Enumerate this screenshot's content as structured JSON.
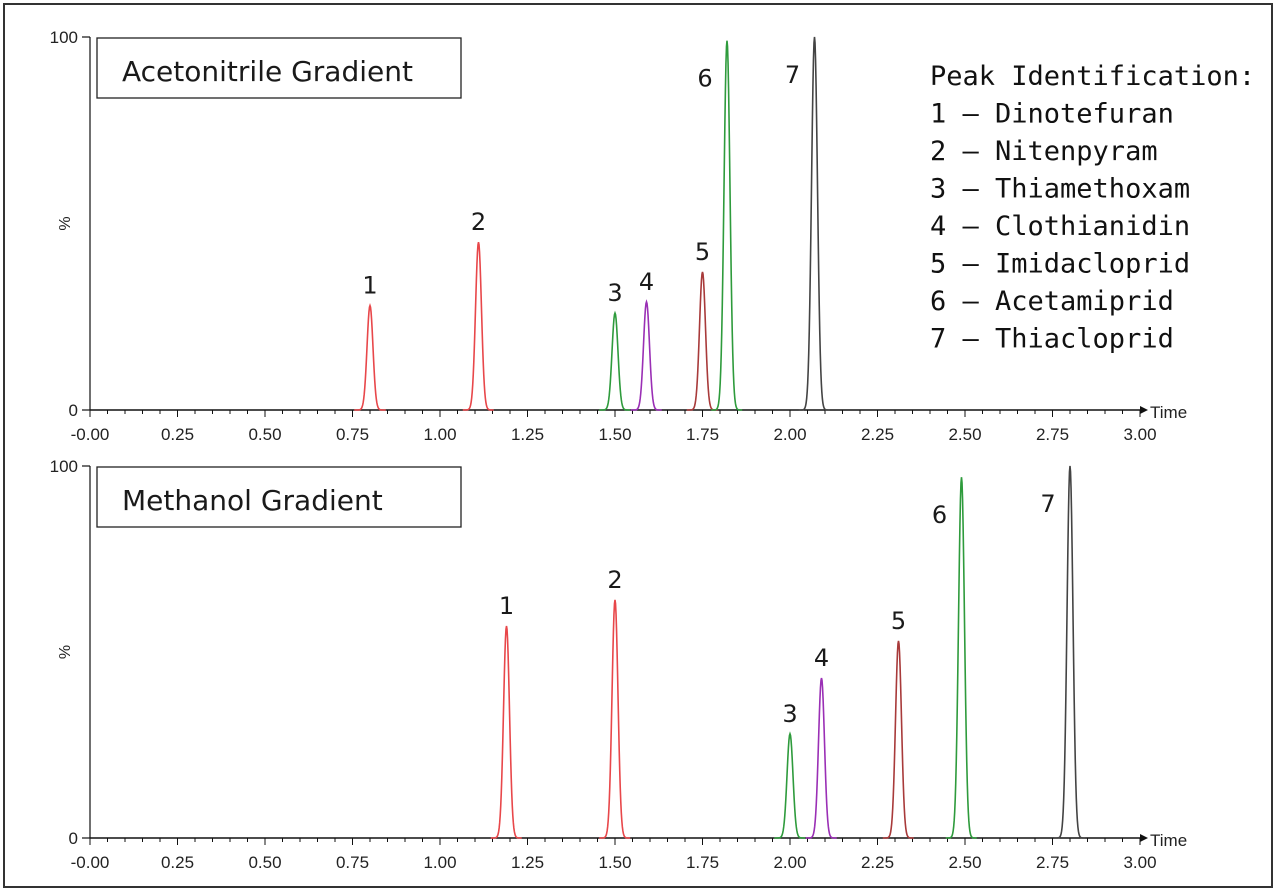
{
  "chart_data": [
    {
      "type": "line",
      "title": "Acetonitrile Gradient",
      "xlabel": "Time",
      "ylabel": "%",
      "xlim": [
        0,
        3
      ],
      "ylim": [
        0,
        100
      ],
      "x_ticks": [
        "-0.00",
        "0.25",
        "0.50",
        "0.75",
        "1.00",
        "1.25",
        "1.50",
        "1.75",
        "2.00",
        "2.25",
        "2.50",
        "2.75",
        "3.00"
      ],
      "y_ticks": [
        "0",
        "100"
      ],
      "peaks": [
        {
          "label": "1",
          "rt": 0.8,
          "height": 28,
          "color": "#e8474a"
        },
        {
          "label": "2",
          "rt": 1.11,
          "height": 45,
          "color": "#e8474a"
        },
        {
          "label": "3",
          "rt": 1.5,
          "height": 26,
          "color": "#2e9b3c"
        },
        {
          "label": "4",
          "rt": 1.59,
          "height": 29,
          "color": "#9a2fb5"
        },
        {
          "label": "5",
          "rt": 1.75,
          "height": 37,
          "color": "#a83a3a"
        },
        {
          "label": "6",
          "rt": 1.82,
          "height": 99,
          "color": "#2e9b3c"
        },
        {
          "label": "7",
          "rt": 2.07,
          "height": 100,
          "color": "#444444"
        }
      ],
      "legend": {
        "title": "Peak Identification:",
        "entries": [
          "1 – Dinotefuran",
          "2 – Nitenpyram",
          "3 – Thiamethoxam",
          "4 – Clothianidin",
          "5 – Imidacloprid",
          "6 – Acetamiprid",
          "7 – Thiacloprid"
        ]
      }
    },
    {
      "type": "line",
      "title": "Methanol Gradient",
      "xlabel": "Time",
      "ylabel": "%",
      "xlim": [
        0,
        3
      ],
      "ylim": [
        0,
        100
      ],
      "x_ticks": [
        "-0.00",
        "0.25",
        "0.50",
        "0.75",
        "1.00",
        "1.25",
        "1.50",
        "1.75",
        "2.00",
        "2.25",
        "2.50",
        "2.75",
        "3.00"
      ],
      "y_ticks": [
        "0",
        "100"
      ],
      "peaks": [
        {
          "label": "1",
          "rt": 1.19,
          "height": 57,
          "color": "#e8474a"
        },
        {
          "label": "2",
          "rt": 1.5,
          "height": 64,
          "color": "#e8474a"
        },
        {
          "label": "3",
          "rt": 2.0,
          "height": 28,
          "color": "#2e9b3c"
        },
        {
          "label": "4",
          "rt": 2.09,
          "height": 43,
          "color": "#9a2fb5"
        },
        {
          "label": "5",
          "rt": 2.31,
          "height": 53,
          "color": "#a83a3a"
        },
        {
          "label": "6",
          "rt": 2.49,
          "height": 97,
          "color": "#2e9b3c"
        },
        {
          "label": "7",
          "rt": 2.8,
          "height": 100,
          "color": "#444444"
        }
      ]
    }
  ]
}
